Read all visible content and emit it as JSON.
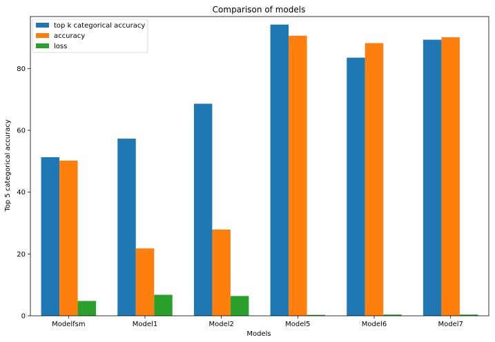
{
  "chart_data": {
    "type": "bar",
    "title": "Comparison of models",
    "xlabel": "Models",
    "ylabel": "Top 5 categorical accuracy",
    "categories": [
      "Modelfsm",
      "Model1",
      "Model2",
      "Model5",
      "Model6",
      "Model7"
    ],
    "series": [
      {
        "name": "top k categorical accuracy",
        "color": "#1f77b4",
        "values": [
          51.3,
          57.3,
          68.6,
          94.2,
          83.5,
          89.3
        ]
      },
      {
        "name": "accuracy",
        "color": "#ff7f0e",
        "values": [
          50.2,
          21.8,
          27.9,
          90.6,
          88.2,
          90.1
        ]
      },
      {
        "name": "loss",
        "color": "#2ca02c",
        "values": [
          4.8,
          6.8,
          6.4,
          0.3,
          0.4,
          0.4
        ]
      }
    ],
    "ylim": [
      0,
      96.8
    ],
    "yticks": [
      0,
      20,
      40,
      60,
      80
    ],
    "grid": false,
    "legend_position": "top-left"
  }
}
